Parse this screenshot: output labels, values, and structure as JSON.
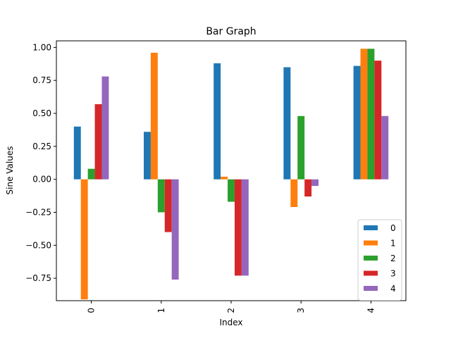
{
  "chart_data": {
    "type": "bar",
    "title": "Bar Graph",
    "xlabel": "Index",
    "ylabel": "Sine Values",
    "categories": [
      "0",
      "1",
      "2",
      "3",
      "4"
    ],
    "ylim": [
      -0.92,
      1.05
    ],
    "yticks": [
      -0.75,
      -0.5,
      -0.25,
      0.0,
      0.25,
      0.5,
      0.75,
      1.0
    ],
    "ytick_labels": [
      "−0.75",
      "−0.50",
      "−0.25",
      "0.00",
      "0.25",
      "0.50",
      "0.75",
      "1.00"
    ],
    "grid": false,
    "legend_position": "bottom-right",
    "series": [
      {
        "name": "0",
        "color": "#1f77b4",
        "values": [
          0.4,
          0.36,
          0.88,
          0.85,
          0.86
        ]
      },
      {
        "name": "1",
        "color": "#ff7f0e",
        "values": [
          -0.91,
          0.96,
          0.02,
          -0.21,
          0.99
        ]
      },
      {
        "name": "2",
        "color": "#2ca02c",
        "values": [
          0.08,
          -0.25,
          -0.17,
          0.48,
          0.99
        ]
      },
      {
        "name": "3",
        "color": "#d62728",
        "values": [
          0.57,
          -0.4,
          -0.73,
          -0.13,
          0.9
        ]
      },
      {
        "name": "4",
        "color": "#9467bd",
        "values": [
          0.78,
          -0.76,
          -0.73,
          -0.05,
          0.48
        ]
      }
    ]
  }
}
